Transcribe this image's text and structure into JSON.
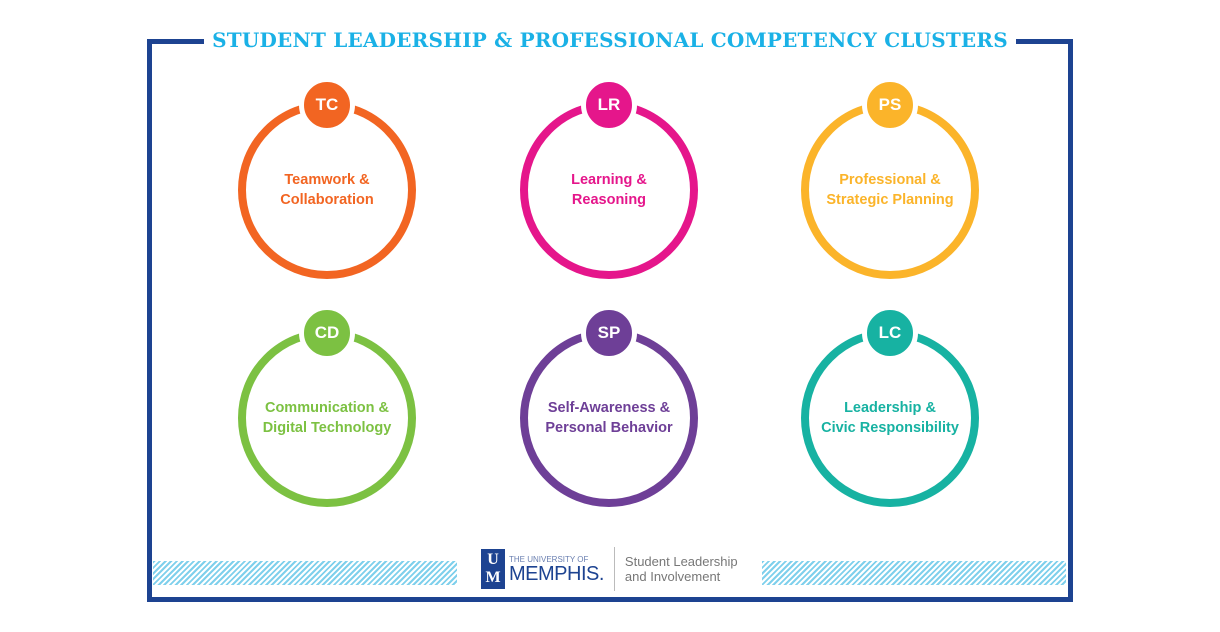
{
  "title": "STUDENT LEADERSHIP & PROFESSIONAL COMPETENCY CLUSTERS",
  "clusters": [
    {
      "abbr": "TC",
      "label": "Teamwork &\nCollaboration",
      "color": "#f26522"
    },
    {
      "abbr": "LR",
      "label": "Learning &\nReasoning",
      "color": "#e5168b"
    },
    {
      "abbr": "PS",
      "label": "Professional &\nStrategic Planning",
      "color": "#fbb42a"
    },
    {
      "abbr": "CD",
      "label": "Communication &\nDigital Technology",
      "color": "#7cc142"
    },
    {
      "abbr": "SP",
      "label": "Self-Awareness &\nPersonal Behavior",
      "color": "#6e3f97"
    },
    {
      "abbr": "LC",
      "label": "Leadership &\nCivic Responsibility",
      "color": "#17b2a2"
    }
  ],
  "footer": {
    "logo_mark": "UM",
    "logo_small": "THE UNIVERSITY OF",
    "logo_big": "MEMPHIS.",
    "dept_line1": "Student Leadership",
    "dept_line2": "and Involvement"
  },
  "colors": {
    "frame": "#1d4391",
    "title": "#1ab1e6",
    "stripes": "#7fd0ec"
  }
}
